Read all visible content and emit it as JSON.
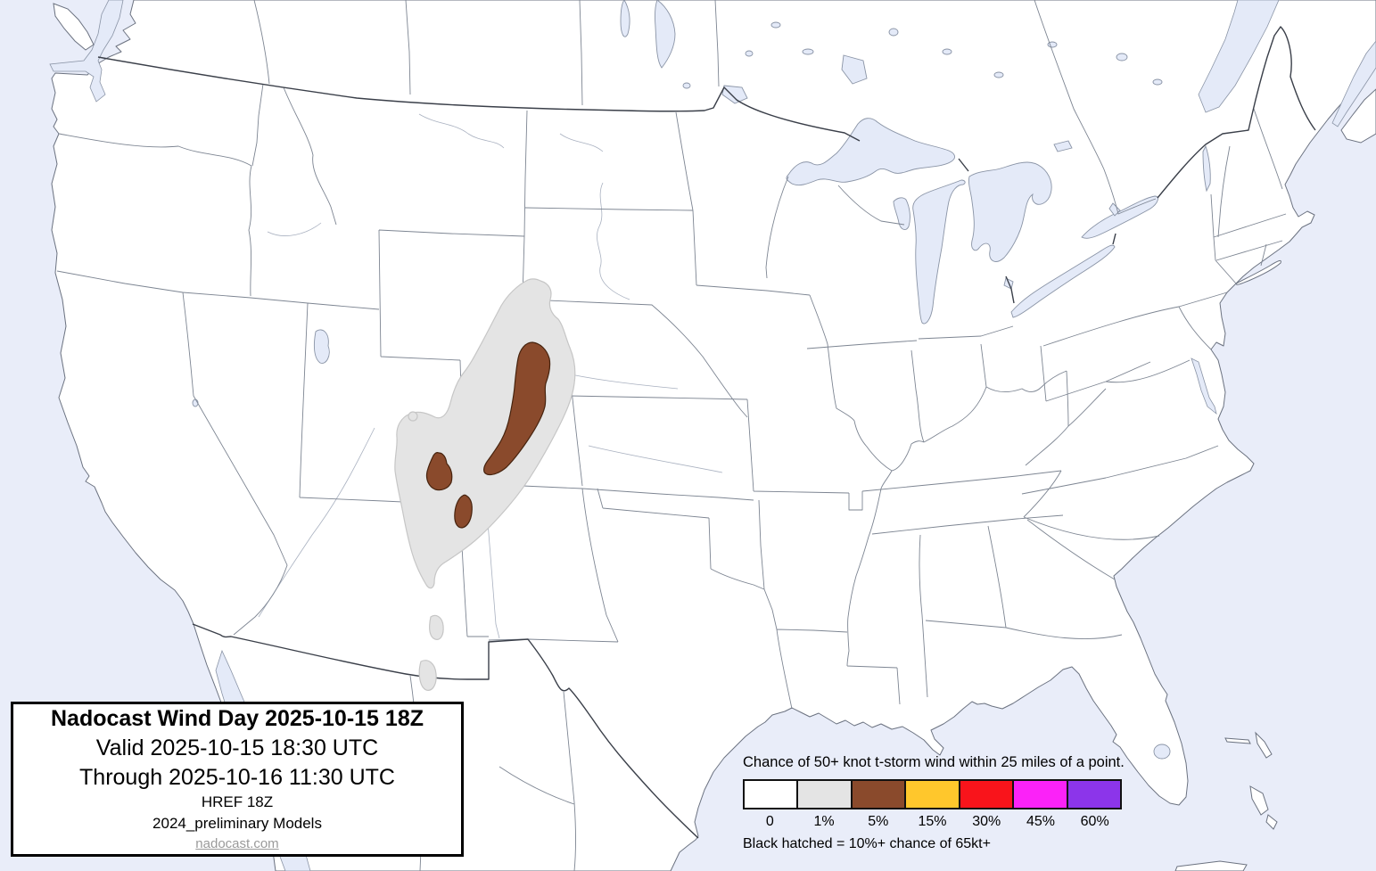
{
  "map": {
    "region": "Contiguous United States with southern Canada and northern Mexico",
    "projection_style": "conic (curved national borders)",
    "colors": {
      "water": "#e9edf9",
      "land": "#ffffff",
      "state_border": "#7d8592",
      "international_border": "#3a3f49",
      "river": "#bcc8ec",
      "contour_1pct_fill": "#e4e4e4",
      "contour_1pct_edge": "#c6c6c6",
      "contour_5pct_fill": "#8a4a2c",
      "contour_5pct_edge": "#46230e"
    },
    "contours": [
      {
        "level": "1%",
        "area": "southeast Wyoming through western Colorado into north-central New Mexico, plus two small areas in central New Mexico"
      },
      {
        "level": "5%",
        "area": "south-central Wyoming / northwest Colorado elongated area, plus two small areas in west-central and southwest Colorado"
      }
    ]
  },
  "title_box": {
    "line1": "Nadocast Wind Day 2025-10-15 18Z",
    "line2": "Valid 2025-10-15 18:30 UTC",
    "line3": "Through 2025-10-16 11:30 UTC",
    "line4": "HREF 18Z",
    "line5": "2024_preliminary Models",
    "link": "nadocast.com"
  },
  "legend": {
    "title": "Chance of 50+ knot t-storm wind within 25 miles of a point.",
    "bins": [
      {
        "label": "0",
        "color": "#ffffff"
      },
      {
        "label": "1%",
        "color": "#e4e4e4"
      },
      {
        "label": "5%",
        "color": "#8a4a2c"
      },
      {
        "label": "15%",
        "color": "#ffc72c"
      },
      {
        "label": "30%",
        "color": "#f9141b"
      },
      {
        "label": "45%",
        "color": "#fb22f8"
      },
      {
        "label": "60%",
        "color": "#8c35ea"
      }
    ],
    "footnote": "Black hatched = 10%+ chance of 65kt+"
  }
}
